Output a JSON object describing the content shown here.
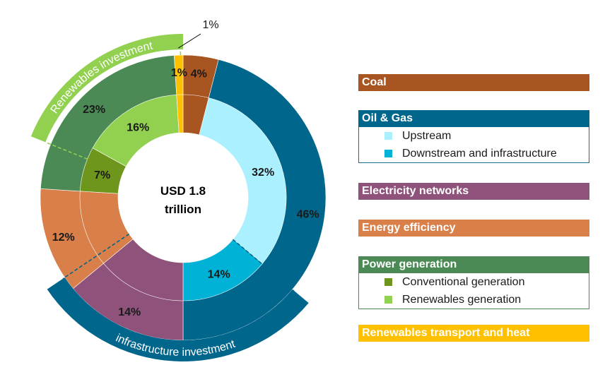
{
  "chart_data": {
    "type": "pie",
    "center_label": [
      "USD 1.8",
      "trillion"
    ],
    "outer_ring": {
      "segments": [
        {
          "name": "Coal",
          "value": 4,
          "label": "4%",
          "color": "#a85521"
        },
        {
          "name": "Oil & Gas",
          "value": 46,
          "label": "46%",
          "color": "#00668c"
        },
        {
          "name": "Electricity networks",
          "value": 14,
          "label": "14%",
          "color": "#8f527a"
        },
        {
          "name": "Energy efficiency",
          "value": 12,
          "label": "12%",
          "color": "#d97f4a"
        },
        {
          "name": "Power generation",
          "value": 23,
          "label": "23%",
          "color": "#4b8a55"
        },
        {
          "name": "Renewables transport and heat",
          "value": 1,
          "label": "1%",
          "color": "#ffc000"
        }
      ]
    },
    "inner_ring": {
      "segments": [
        {
          "name": "Coal",
          "value": 4,
          "label": "",
          "color": "#a85521"
        },
        {
          "name": "Upstream",
          "value": 32,
          "label": "32%",
          "color": "#aaf0ff"
        },
        {
          "name": "Downstream and infrastructure",
          "value": 14,
          "label": "14%",
          "color": "#00b3d6"
        },
        {
          "name": "Electricity networks",
          "value": 14,
          "label": "",
          "color": "#8f527a"
        },
        {
          "name": "Energy efficiency",
          "value": 12,
          "label": "",
          "color": "#d97f4a"
        },
        {
          "name": "Conventional generation",
          "value": 7,
          "label": "7%",
          "color": "#6f961c"
        },
        {
          "name": "Renewables generation",
          "value": 16,
          "label": "16%",
          "color": "#92d050"
        },
        {
          "name": "Renewables transport and heat",
          "value": 1,
          "label": "",
          "color": "#ffc000"
        }
      ]
    },
    "arc_labels": {
      "renewables": {
        "text": "Renewables investment",
        "color": "#92d050"
      },
      "infrastructure": {
        "text": "infrastructure investment",
        "color": "#00668c"
      }
    },
    "callout_label": "1%"
  },
  "legend": {
    "coal": {
      "label": "Coal",
      "color": "#a85521"
    },
    "oil_gas": {
      "label": "Oil & Gas",
      "color": "#00668c",
      "items": [
        {
          "label": "Upstream",
          "color": "#aaf0ff"
        },
        {
          "label": "Downstream and infrastructure",
          "color": "#00b3d6"
        }
      ]
    },
    "networks": {
      "label": "Electricity networks",
      "color": "#8f527a"
    },
    "efficiency": {
      "label": "Energy efficiency",
      "color": "#d97f4a"
    },
    "power": {
      "label": "Power generation",
      "color": "#4b8a55",
      "items": [
        {
          "label": "Conventional generation",
          "color": "#6f961c"
        },
        {
          "label": "Renewables generation",
          "color": "#92d050"
        }
      ]
    },
    "renew_transport": {
      "label": "Renewables transport and heat",
      "color": "#ffc000"
    }
  }
}
